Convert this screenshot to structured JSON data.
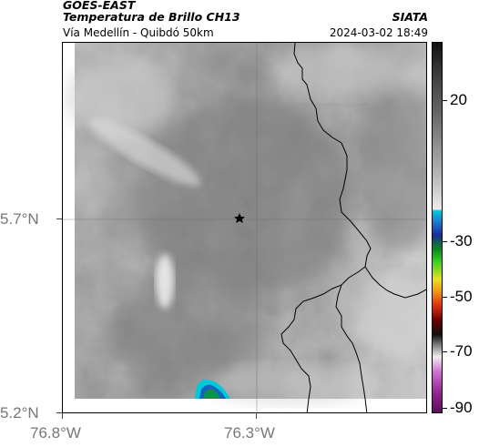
{
  "header": {
    "satellite": "GOES-EAST",
    "product": "Temperatura de Brillo CH13",
    "region": "Vía Medellín - Quibdó 50km",
    "org": "SIATA",
    "datetime": "2024-03-02 18:49"
  },
  "map": {
    "lat_labels": [
      "5.7°N",
      "5.2°N"
    ],
    "lon_labels": [
      "76.8°W",
      "76.3°W"
    ],
    "marker": "star-icon"
  },
  "colorbar": {
    "labels": [
      "20",
      "-30",
      "-50",
      "-70",
      "-90"
    ]
  }
}
